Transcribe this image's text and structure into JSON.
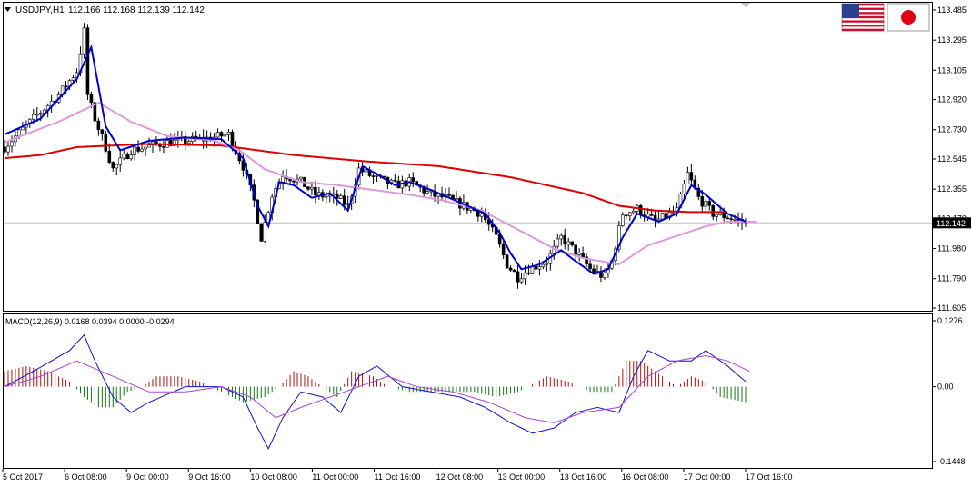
{
  "header": {
    "symbol": "USDJPY,H1",
    "ohlc": "112.166 112.168 112.139 112.142"
  },
  "flags": {
    "left": "us-flag-icon",
    "right": "jp-flag-icon"
  },
  "current_price": "112.142",
  "macd": {
    "label": "MACD(12,26,9) 0.0168 0.0394 0.0000 -0.0294",
    "axis_labels": [
      "0.1276",
      "0.00",
      "-0.1448"
    ]
  },
  "colors": {
    "candles": "#000000",
    "ma_fast": "#0000cc",
    "ma_mid": "#dd99dd",
    "ma_slow": "#dd0000",
    "hist_pos": "#aa1111",
    "hist_neg": "#117711",
    "macd_main": "#1111cc",
    "macd_signal": "#aa44cc"
  },
  "chart_data": {
    "type": "candlestick",
    "price_axis_labels": [
      "113.485",
      "113.295",
      "113.105",
      "112.920",
      "112.730",
      "112.545",
      "112.355",
      "112.170",
      "111.980",
      "111.790",
      "111.605"
    ],
    "price_ylim": [
      111.605,
      113.485
    ],
    "time_labels": [
      "5 Oct 2017",
      "6 Oct 08:00",
      "9 Oct 00:00",
      "9 Oct 16:00",
      "10 Oct 08:00",
      "11 Oct 00:00",
      "11 Oct 16:00",
      "12 Oct 08:00",
      "13 Oct 00:00",
      "13 Oct 16:00",
      "16 Oct 08:00",
      "17 Oct 00:00",
      "17 Oct 16:00"
    ],
    "price_anchors": [
      [
        0,
        112.62
      ],
      [
        8,
        112.8
      ],
      [
        15,
        112.95
      ],
      [
        20,
        113.1
      ],
      [
        22,
        113.35
      ],
      [
        23,
        112.95
      ],
      [
        25,
        112.8
      ],
      [
        28,
        112.62
      ],
      [
        30,
        112.48
      ],
      [
        35,
        112.6
      ],
      [
        45,
        112.65
      ],
      [
        55,
        112.67
      ],
      [
        62,
        112.7
      ],
      [
        66,
        112.5
      ],
      [
        69,
        112.28
      ],
      [
        71,
        112.05
      ],
      [
        74,
        112.32
      ],
      [
        77,
        112.45
      ],
      [
        82,
        112.4
      ],
      [
        86,
        112.32
      ],
      [
        92,
        112.3
      ],
      [
        95,
        112.25
      ],
      [
        98,
        112.48
      ],
      [
        102,
        112.43
      ],
      [
        108,
        112.38
      ],
      [
        112,
        112.4
      ],
      [
        118,
        112.32
      ],
      [
        122,
        112.3
      ],
      [
        127,
        112.25
      ],
      [
        132,
        112.2
      ],
      [
        136,
        112.05
      ],
      [
        139,
        111.88
      ],
      [
        142,
        111.8
      ],
      [
        145,
        111.85
      ],
      [
        150,
        111.9
      ],
      [
        154,
        112.05
      ],
      [
        158,
        111.96
      ],
      [
        162,
        111.85
      ],
      [
        166,
        111.8
      ],
      [
        168,
        111.9
      ],
      [
        171,
        112.2
      ],
      [
        175,
        112.23
      ],
      [
        180,
        112.15
      ],
      [
        186,
        112.22
      ],
      [
        189,
        112.45
      ],
      [
        192,
        112.3
      ],
      [
        196,
        112.2
      ],
      [
        200,
        112.18
      ],
      [
        205,
        112.142
      ]
    ],
    "ma_fast_anchors": [
      [
        0,
        112.7
      ],
      [
        10,
        112.8
      ],
      [
        20,
        113.05
      ],
      [
        24,
        113.25
      ],
      [
        28,
        112.75
      ],
      [
        32,
        112.6
      ],
      [
        40,
        112.66
      ],
      [
        50,
        112.68
      ],
      [
        60,
        112.67
      ],
      [
        66,
        112.55
      ],
      [
        70,
        112.25
      ],
      [
        73,
        112.12
      ],
      [
        76,
        112.4
      ],
      [
        80,
        112.38
      ],
      [
        85,
        112.3
      ],
      [
        90,
        112.33
      ],
      [
        95,
        112.22
      ],
      [
        99,
        112.5
      ],
      [
        103,
        112.45
      ],
      [
        108,
        112.38
      ],
      [
        112,
        112.4
      ],
      [
        118,
        112.35
      ],
      [
        123,
        112.3
      ],
      [
        128,
        112.25
      ],
      [
        133,
        112.2
      ],
      [
        137,
        112.08
      ],
      [
        140,
        111.95
      ],
      [
        143,
        111.85
      ],
      [
        148,
        111.88
      ],
      [
        154,
        111.97
      ],
      [
        158,
        111.9
      ],
      [
        163,
        111.82
      ],
      [
        167,
        111.85
      ],
      [
        171,
        112.05
      ],
      [
        175,
        112.2
      ],
      [
        181,
        112.15
      ],
      [
        186,
        112.2
      ],
      [
        190,
        112.38
      ],
      [
        194,
        112.32
      ],
      [
        200,
        112.2
      ],
      [
        205,
        112.15
      ]
    ],
    "ma_mid_anchors": [
      [
        0,
        112.65
      ],
      [
        15,
        112.78
      ],
      [
        26,
        112.9
      ],
      [
        35,
        112.78
      ],
      [
        45,
        112.69
      ],
      [
        58,
        112.66
      ],
      [
        65,
        112.6
      ],
      [
        72,
        112.48
      ],
      [
        82,
        112.4
      ],
      [
        92,
        112.38
      ],
      [
        102,
        112.35
      ],
      [
        112,
        112.32
      ],
      [
        122,
        112.28
      ],
      [
        132,
        112.22
      ],
      [
        142,
        112.1
      ],
      [
        152,
        111.98
      ],
      [
        160,
        111.92
      ],
      [
        170,
        111.88
      ],
      [
        178,
        112.0
      ],
      [
        186,
        112.06
      ],
      [
        194,
        112.12
      ],
      [
        200,
        112.15
      ],
      [
        208,
        112.15
      ]
    ],
    "ma_slow_anchors": [
      [
        0,
        112.55
      ],
      [
        10,
        112.57
      ],
      [
        20,
        112.62
      ],
      [
        40,
        112.64
      ],
      [
        60,
        112.63
      ],
      [
        80,
        112.57
      ],
      [
        100,
        112.53
      ],
      [
        120,
        112.5
      ],
      [
        140,
        112.43
      ],
      [
        160,
        112.33
      ],
      [
        170,
        112.25
      ],
      [
        180,
        112.22
      ],
      [
        190,
        112.21
      ],
      [
        200,
        112.21
      ]
    ],
    "macd_ylim": [
      -0.1448,
      0.1276
    ],
    "macd_main_anchors": [
      [
        0,
        0.0
      ],
      [
        8,
        0.03
      ],
      [
        18,
        0.07
      ],
      [
        22,
        0.1
      ],
      [
        25,
        0.05
      ],
      [
        30,
        -0.02
      ],
      [
        35,
        -0.05
      ],
      [
        40,
        -0.03
      ],
      [
        50,
        0.0
      ],
      [
        60,
        0.0
      ],
      [
        66,
        -0.02
      ],
      [
        70,
        -0.08
      ],
      [
        73,
        -0.12
      ],
      [
        77,
        -0.06
      ],
      [
        82,
        -0.01
      ],
      [
        88,
        -0.02
      ],
      [
        93,
        -0.05
      ],
      [
        98,
        0.02
      ],
      [
        103,
        0.04
      ],
      [
        110,
        0.0
      ],
      [
        118,
        -0.01
      ],
      [
        126,
        -0.02
      ],
      [
        133,
        -0.04
      ],
      [
        140,
        -0.07
      ],
      [
        146,
        -0.09
      ],
      [
        152,
        -0.08
      ],
      [
        158,
        -0.05
      ],
      [
        164,
        -0.04
      ],
      [
        170,
        -0.05
      ],
      [
        174,
        0.02
      ],
      [
        178,
        0.07
      ],
      [
        184,
        0.05
      ],
      [
        190,
        0.05
      ],
      [
        194,
        0.07
      ],
      [
        200,
        0.04
      ],
      [
        205,
        0.01
      ]
    ],
    "macd_signal_anchors": [
      [
        0,
        0.0
      ],
      [
        10,
        0.02
      ],
      [
        20,
        0.05
      ],
      [
        30,
        0.02
      ],
      [
        40,
        -0.01
      ],
      [
        50,
        -0.01
      ],
      [
        60,
        0.0
      ],
      [
        68,
        -0.02
      ],
      [
        75,
        -0.06
      ],
      [
        82,
        -0.04
      ],
      [
        90,
        -0.02
      ],
      [
        98,
        0.0
      ],
      [
        106,
        0.02
      ],
      [
        114,
        0.0
      ],
      [
        124,
        -0.01
      ],
      [
        134,
        -0.03
      ],
      [
        144,
        -0.06
      ],
      [
        152,
        -0.07
      ],
      [
        160,
        -0.05
      ],
      [
        170,
        -0.04
      ],
      [
        178,
        0.02
      ],
      [
        186,
        0.05
      ],
      [
        194,
        0.06
      ],
      [
        200,
        0.05
      ],
      [
        206,
        0.03
      ]
    ],
    "hist_anchors": [
      [
        0,
        0.03
      ],
      [
        6,
        0.04
      ],
      [
        12,
        0.03
      ],
      [
        18,
        0.01
      ],
      [
        22,
        -0.02
      ],
      [
        26,
        -0.04
      ],
      [
        30,
        -0.04
      ],
      [
        34,
        -0.01
      ],
      [
        38,
        0.0
      ],
      [
        42,
        0.02
      ],
      [
        48,
        0.02
      ],
      [
        54,
        0.01
      ],
      [
        60,
        -0.01
      ],
      [
        66,
        -0.03
      ],
      [
        72,
        -0.02
      ],
      [
        76,
        0.0
      ],
      [
        80,
        0.03
      ],
      [
        84,
        0.02
      ],
      [
        88,
        0.0
      ],
      [
        92,
        -0.02
      ],
      [
        96,
        0.03
      ],
      [
        102,
        0.02
      ],
      [
        106,
        0.0
      ],
      [
        112,
        -0.01
      ],
      [
        120,
        -0.01
      ],
      [
        130,
        -0.01
      ],
      [
        136,
        -0.02
      ],
      [
        142,
        -0.01
      ],
      [
        150,
        0.02
      ],
      [
        156,
        0.01
      ],
      [
        162,
        -0.01
      ],
      [
        168,
        -0.01
      ],
      [
        172,
        0.05
      ],
      [
        176,
        0.05
      ],
      [
        182,
        0.02
      ],
      [
        186,
        0.0
      ],
      [
        190,
        0.02
      ],
      [
        194,
        0.01
      ],
      [
        198,
        -0.02
      ],
      [
        205,
        -0.03
      ]
    ],
    "bar_count": 206
  }
}
